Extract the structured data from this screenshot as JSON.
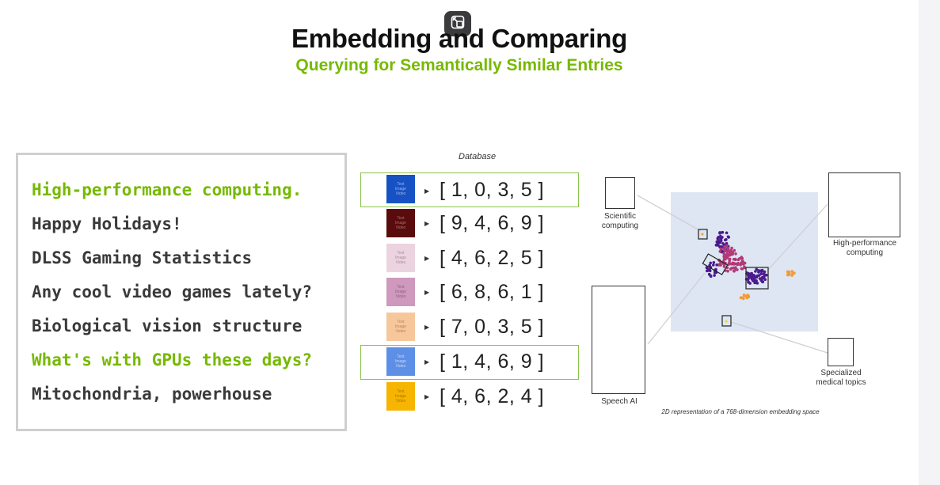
{
  "title": "Embedding and Comparing",
  "subtitle": "Querying for Semantically Similar Entries",
  "queries": [
    {
      "text": "High-performance computing.",
      "highlight": true
    },
    {
      "text": "Happy Holidays!",
      "highlight": false
    },
    {
      "text": "DLSS Gaming Statistics",
      "highlight": false
    },
    {
      "text": "Any cool video games lately?",
      "highlight": false
    },
    {
      "text": "Biological vision structure",
      "highlight": false
    },
    {
      "text": "What's with GPUs these days?",
      "highlight": true
    },
    {
      "text": "Mitochondria, powerhouse",
      "highlight": false
    }
  ],
  "database": {
    "header": "Database",
    "swatch_lines": [
      "Text",
      "Image",
      "Video"
    ],
    "entries": [
      {
        "color": "#1652c4",
        "text_color": "#9fb6e8",
        "vector": "[ 1, 0, 3, 5 ]",
        "highlight": true
      },
      {
        "color": "#5a0b0b",
        "text_color": "#a87272",
        "vector": "[ 9, 4, 6, 9 ]",
        "highlight": false
      },
      {
        "color": "#ecd3e0",
        "text_color": "#b08aa0",
        "vector": "[ 4, 6, 2, 5 ]",
        "highlight": false
      },
      {
        "color": "#cf98bd",
        "text_color": "#8e5f80",
        "vector": "[ 6, 8, 6, 1 ]",
        "highlight": false
      },
      {
        "color": "#f7c79c",
        "text_color": "#b8845a",
        "vector": "[ 7, 0, 3, 5 ]",
        "highlight": false
      },
      {
        "color": "#5e8fe6",
        "text_color": "#c8d9f7",
        "vector": "[ 1, 4, 6, 9 ]",
        "highlight": true
      },
      {
        "color": "#f7b400",
        "text_color": "#a87800",
        "vector": "[ 4, 6, 2, 4 ]",
        "highlight": false
      }
    ]
  },
  "embedding": {
    "labels": {
      "scientific": "Scientific computing",
      "hpc": "High-performance computing",
      "speech": "Speech AI",
      "medical": "Specialized medical topics"
    },
    "caption": "2D representation of a 768-dimension embedding space",
    "colors": {
      "panel": "#dde6f2",
      "purple": "#4b1a8c",
      "magenta": "#b03a78",
      "orange": "#f39a3a",
      "yellow": "#e8d84a"
    }
  }
}
